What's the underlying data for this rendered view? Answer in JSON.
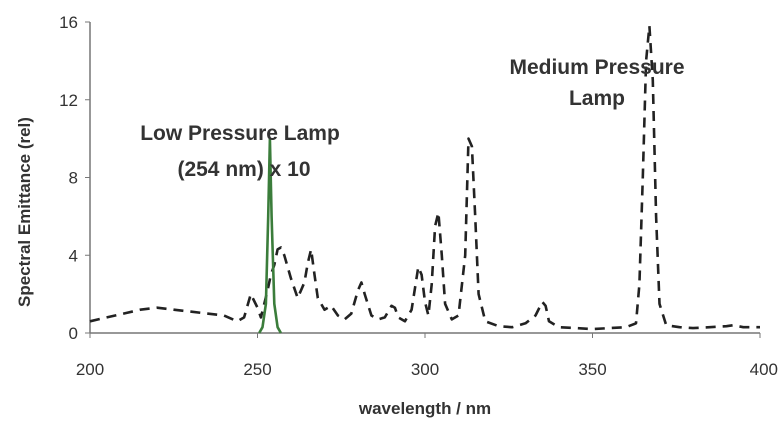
{
  "chart_data": {
    "type": "line",
    "xlabel": "wavelength / nm",
    "ylabel": "Spectral Emittance (rel)",
    "xlim": [
      200,
      400
    ],
    "ylim": [
      0,
      16
    ],
    "x_ticks": [
      "200",
      "250",
      "300",
      "350",
      "400"
    ],
    "y_ticks": [
      "0",
      "4",
      "8",
      "12",
      "16"
    ],
    "grid": false,
    "annotations": [
      {
        "lines": [
          "Low Pressure Lamp",
          "(254 nm) x 10"
        ]
      },
      {
        "lines": [
          "Medium Pressure",
          "Lamp"
        ]
      }
    ],
    "series": [
      {
        "style": "dashed",
        "color": "#222222",
        "points": [
          [
            200,
            0.6
          ],
          [
            205,
            0.8
          ],
          [
            210,
            1.0
          ],
          [
            215,
            1.2
          ],
          [
            220,
            1.3
          ],
          [
            225,
            1.2
          ],
          [
            230,
            1.1
          ],
          [
            235,
            1.0
          ],
          [
            240,
            0.9
          ],
          [
            244,
            0.6
          ],
          [
            246,
            0.8
          ],
          [
            248,
            2.0
          ],
          [
            250,
            1.3
          ],
          [
            251,
            0.8
          ],
          [
            253,
            2.2
          ],
          [
            254,
            3.0
          ],
          [
            255,
            3.5
          ],
          [
            256,
            4.3
          ],
          [
            257,
            4.4
          ],
          [
            258,
            4.0
          ],
          [
            260,
            2.8
          ],
          [
            262,
            1.8
          ],
          [
            264,
            2.6
          ],
          [
            265,
            3.6
          ],
          [
            266,
            4.3
          ],
          [
            267,
            3.0
          ],
          [
            268,
            1.8
          ],
          [
            270,
            1.2
          ],
          [
            272,
            1.4
          ],
          [
            274,
            0.9
          ],
          [
            276,
            0.7
          ],
          [
            278,
            1.0
          ],
          [
            280,
            2.2
          ],
          [
            281,
            2.6
          ],
          [
            282,
            2.0
          ],
          [
            284,
            0.9
          ],
          [
            286,
            0.7
          ],
          [
            288,
            0.8
          ],
          [
            290,
            1.4
          ],
          [
            291,
            1.3
          ],
          [
            292,
            0.8
          ],
          [
            294,
            0.6
          ],
          [
            296,
            1.2
          ],
          [
            298,
            3.4
          ],
          [
            299,
            3.0
          ],
          [
            300,
            1.6
          ],
          [
            301,
            0.9
          ],
          [
            302,
            2.5
          ],
          [
            303,
            5.5
          ],
          [
            304,
            6.2
          ],
          [
            305,
            4.0
          ],
          [
            306,
            1.5
          ],
          [
            308,
            0.7
          ],
          [
            310,
            0.9
          ],
          [
            312,
            4.0
          ],
          [
            313,
            10.0
          ],
          [
            314,
            9.6
          ],
          [
            315,
            6.0
          ],
          [
            316,
            2.0
          ],
          [
            318,
            0.6
          ],
          [
            322,
            0.35
          ],
          [
            326,
            0.3
          ],
          [
            330,
            0.5
          ],
          [
            333,
            0.9
          ],
          [
            335,
            1.6
          ],
          [
            336,
            1.4
          ],
          [
            337,
            0.6
          ],
          [
            340,
            0.3
          ],
          [
            345,
            0.25
          ],
          [
            350,
            0.2
          ],
          [
            355,
            0.25
          ],
          [
            360,
            0.3
          ],
          [
            363,
            0.5
          ],
          [
            364,
            2.5
          ],
          [
            365,
            8.0
          ],
          [
            366,
            14.0
          ],
          [
            367,
            15.8
          ],
          [
            368,
            13.0
          ],
          [
            369,
            6.0
          ],
          [
            370,
            1.5
          ],
          [
            372,
            0.4
          ],
          [
            376,
            0.3
          ],
          [
            380,
            0.25
          ],
          [
            385,
            0.3
          ],
          [
            390,
            0.35
          ],
          [
            392,
            0.4
          ],
          [
            395,
            0.3
          ],
          [
            400,
            0.3
          ]
        ]
      },
      {
        "style": "solid",
        "color": "#3b7d3b",
        "points": [
          [
            250.5,
            0.0
          ],
          [
            251.5,
            0.3
          ],
          [
            252.5,
            1.5
          ],
          [
            253.2,
            6.0
          ],
          [
            253.7,
            10.0
          ],
          [
            254.2,
            6.0
          ],
          [
            255.0,
            1.5
          ],
          [
            256.0,
            0.3
          ],
          [
            257.0,
            0.0
          ]
        ]
      }
    ]
  }
}
